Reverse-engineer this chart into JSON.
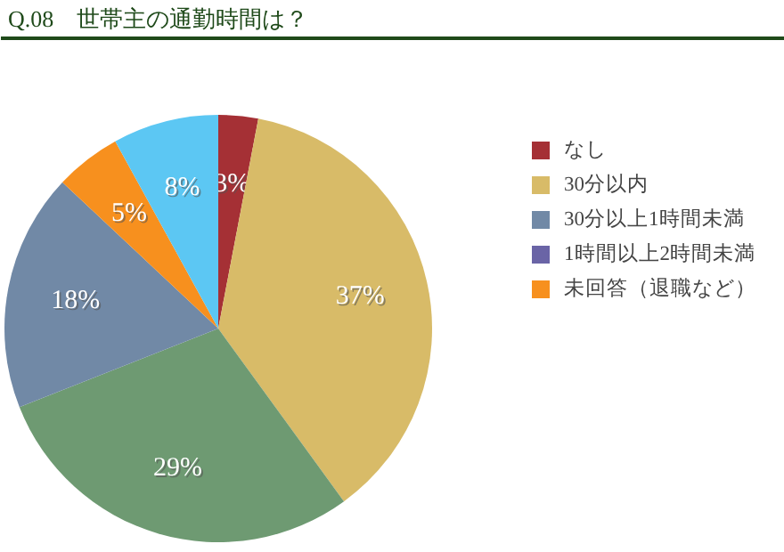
{
  "chart_data": {
    "type": "pie",
    "title": "Q.08　世帯主の通勤時間は？",
    "categories": [
      "なし",
      "30分以内",
      null,
      "30分以上1時間未満",
      "1時間以上2時間未満",
      "未回答（退職など）",
      null
    ],
    "values": [
      3,
      37,
      29,
      18,
      0,
      5,
      8
    ],
    "colors": [
      "#a53035",
      "#d8bb68",
      "#6e9a72",
      "#7189a6",
      "#6a64a6",
      "#f7901e",
      "#5cc7f3"
    ],
    "value_labels": [
      "3%",
      "37%",
      "29%",
      "18%",
      null,
      "5%",
      "8%"
    ],
    "legend": "right"
  }
}
